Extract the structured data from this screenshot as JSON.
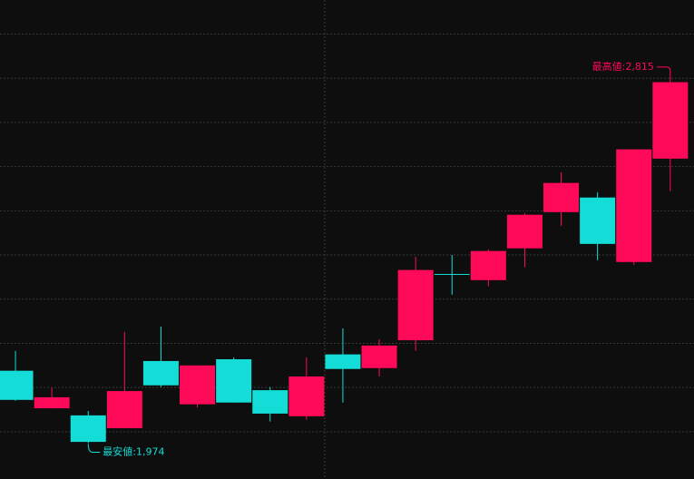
{
  "chart_data": {
    "type": "candlestick",
    "categories": [
      null,
      null,
      null,
      null,
      null,
      null,
      null,
      null,
      null,
      null,
      null,
      null,
      null,
      null,
      null,
      null,
      null,
      null,
      null
    ],
    "open": [
      2138,
      2053,
      2037,
      2008,
      2160,
      2062,
      2164,
      2094,
      2035,
      2175,
      2144,
      2207,
      2357,
      2343,
      2415,
      2497,
      2530,
      2384,
      2618
    ],
    "high": [
      2183,
      2099,
      2047,
      2226,
      2238,
      2150,
      2168,
      2101,
      2168,
      2234,
      2209,
      2396,
      2400,
      2413,
      2495,
      2587,
      2542,
      2639,
      2815
    ],
    "low": [
      2070,
      2053,
      1974,
      2008,
      2101,
      2055,
      2066,
      2023,
      2027,
      2066,
      2125,
      2183,
      2310,
      2329,
      2372,
      2466,
      2388,
      2378,
      2544
    ],
    "close": [
      2072,
      2078,
      1977,
      2092,
      2105,
      2150,
      2066,
      2041,
      2125,
      2142,
      2195,
      2366,
      2357,
      2409,
      2491,
      2563,
      2425,
      2639,
      2791
    ],
    "up_color": "#ff0a58",
    "down_color": "#14dcd6",
    "ylim": [
      1893,
      2977
    ],
    "yticks": [
      2000,
      2100,
      2200,
      2300,
      2400,
      2500,
      2600,
      2700,
      2800,
      2900
    ],
    "grid": true,
    "annotations": [
      {
        "text": "最高値:2,815"
      },
      {
        "text": "最安値:1,974"
      }
    ]
  }
}
